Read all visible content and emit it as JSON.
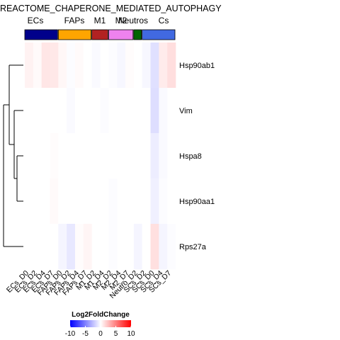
{
  "chart_data": {
    "type": "heatmap",
    "title": "REACTOME_CHAPERONE_MEDIATED_AUTOPHAGY",
    "rows": [
      "Hsp90ab1",
      "Vim",
      "Hspa8",
      "Hsp90aa1",
      "Rps27a"
    ],
    "columns": [
      "ECs_D0",
      "ECs_D2",
      "ECs_D4",
      "ECs_D7",
      "FAPs_D0",
      "FAPs_D2",
      "FAPs_D4",
      "FAPs_D7",
      "M1_D2",
      "M1_D4",
      "M2_D2",
      "M2_D4",
      "M2_D7",
      "Neutro_D2",
      "SCs_D2",
      "SCs_D0",
      "SCs_D4",
      "SCs_D7"
    ],
    "column_groups": [
      {
        "name": "ECs",
        "span": 4,
        "color": "#00008b"
      },
      {
        "name": "FAPs",
        "span": 4,
        "color": "#ffa500"
      },
      {
        "name": "M1",
        "span": 2,
        "color": "#b22222"
      },
      {
        "name": "M2",
        "span": 3,
        "color": "#ee82ee"
      },
      {
        "name": "Neutros",
        "span": 1,
        "color": "#006400"
      },
      {
        "name": "Cs",
        "span": 4,
        "color": "#4169e1"
      }
    ],
    "values": [
      [
        0.5,
        0.2,
        1.0,
        0.9,
        0.3,
        -0.1,
        0.2,
        0.0,
        -0.2,
        0.0,
        -0.1,
        -0.3,
        0.1,
        0.0,
        -0.3,
        -1.2,
        0.8,
        1.3
      ],
      [
        0.0,
        0.0,
        0.0,
        0.0,
        0.0,
        -0.2,
        0.0,
        0.0,
        0.0,
        -0.1,
        0.0,
        0.0,
        0.0,
        0.0,
        0.0,
        -1.3,
        -0.2,
        0.0
      ],
      [
        0.0,
        0.0,
        0.0,
        0.1,
        0.0,
        0.0,
        0.0,
        0.0,
        0.0,
        0.0,
        0.0,
        0.0,
        0.0,
        0.0,
        0.0,
        -0.7,
        -0.2,
        0.0
      ],
      [
        0.0,
        0.0,
        0.0,
        0.2,
        0.0,
        0.0,
        0.0,
        0.0,
        0.0,
        0.0,
        -0.1,
        0.0,
        0.0,
        0.0,
        0.0,
        -0.6,
        -0.1,
        0.0
      ],
      [
        0.0,
        0.0,
        0.0,
        0.0,
        -0.4,
        -0.9,
        0.1,
        0.4,
        0.0,
        0.0,
        -0.1,
        0.0,
        0.0,
        -0.4,
        0.0,
        1.2,
        -0.4,
        -0.1
      ]
    ],
    "dendrogram": {
      "order": [
        "Hsp90ab1",
        "Vim",
        "Hspa8",
        "Hsp90aa1",
        "Rps27a"
      ],
      "merges": [
        [
          "Hspa8",
          "Hsp90aa1"
        ],
        [
          "Vim",
          "Hspa8+Hsp90aa1"
        ],
        [
          "Hsp90ab1",
          "Vim+Hspa8+Hsp90aa1"
        ],
        [
          "all",
          "Rps27a"
        ]
      ]
    },
    "legend": {
      "title": "Log2FoldChange",
      "ticks": [
        -10,
        -5,
        0,
        5,
        10
      ],
      "range": [
        -10,
        10
      ],
      "colors": [
        "#0000ff",
        "#ffffff",
        "#ff0000"
      ],
      "placement": "bottom-center"
    }
  }
}
